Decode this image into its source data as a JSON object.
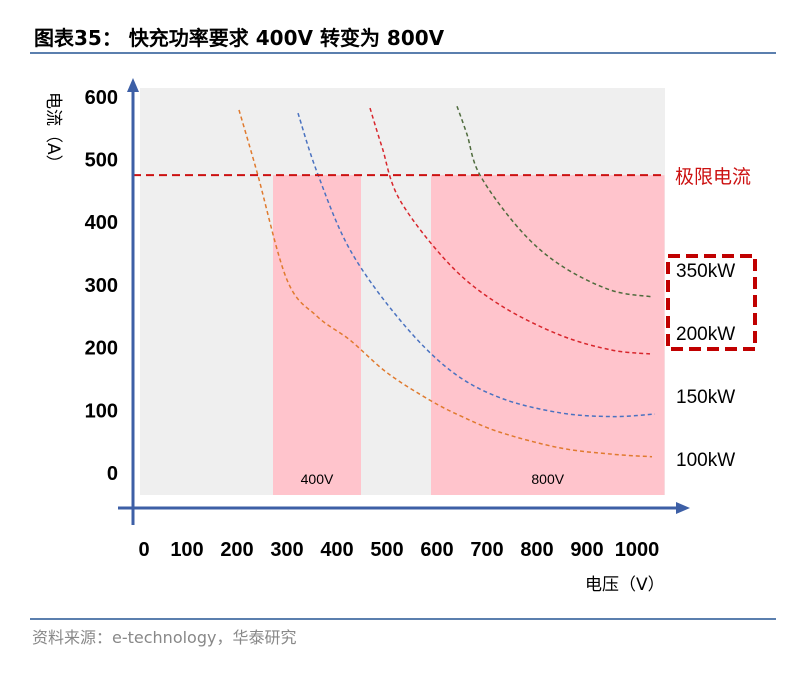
{
  "header": {
    "title": "图表35：  快充功率要求 400V 转变为 800V"
  },
  "footer": {
    "source": "资料来源：e-technology，华泰研究"
  },
  "colors": {
    "rule": "#5b7fae",
    "axis": "#3d5fa6",
    "plot_bg": "#efefef",
    "zone": "#ffc4cc",
    "limit": "#cc1111"
  },
  "chart_data": {
    "type": "line",
    "title": "快充功率要求 400V 转变为 800V",
    "xlabel": "电压（V）",
    "ylabel": "电流（A）",
    "xlim": [
      0,
      1050
    ],
    "ylim": [
      0,
      600
    ],
    "x_ticks": [
      "0",
      "100",
      "200",
      "300",
      "400",
      "500",
      "600",
      "700",
      "800",
      "900",
      "1000"
    ],
    "y_ticks": [
      "0",
      "100",
      "200",
      "300",
      "400",
      "500",
      "600"
    ],
    "limit_current": {
      "value": 475,
      "label": "极限电流"
    },
    "zones": [
      {
        "label": "400V",
        "from": 272,
        "to": 448
      },
      {
        "label": "800V",
        "from": 588,
        "to": 1055
      }
    ],
    "series": [
      {
        "name": "100kW",
        "color": "#e07a2e",
        "points": [
          [
            204,
            579
          ],
          [
            240,
            480
          ],
          [
            300,
            308
          ],
          [
            360,
            250
          ],
          [
            426,
            212
          ],
          [
            500,
            160
          ],
          [
            586,
            116
          ],
          [
            650,
            90
          ],
          [
            726,
            65
          ],
          [
            846,
            40
          ],
          [
            950,
            30
          ],
          [
            1030,
            26
          ]
        ]
      },
      {
        "name": "150kW",
        "color": "#4a72c0",
        "points": [
          [
            322,
            574
          ],
          [
            360,
            480
          ],
          [
            426,
            356
          ],
          [
            526,
            244
          ],
          [
            626,
            164
          ],
          [
            726,
            120
          ],
          [
            846,
            96
          ],
          [
            950,
            90
          ],
          [
            1036,
            94
          ]
        ]
      },
      {
        "name": "200kW",
        "color": "#d8262c",
        "points": [
          [
            466,
            582
          ],
          [
            490,
            520
          ],
          [
            526,
            435
          ],
          [
            626,
            332
          ],
          [
            726,
            268
          ],
          [
            846,
            220
          ],
          [
            950,
            196
          ],
          [
            1026,
            190
          ]
        ]
      },
      {
        "name": "350kW",
        "color": "#4f6b3d",
        "points": [
          [
            640,
            585
          ],
          [
            660,
            540
          ],
          [
            686,
            475
          ],
          [
            766,
            388
          ],
          [
            846,
            332
          ],
          [
            946,
            292
          ],
          [
            1030,
            281
          ]
        ]
      }
    ],
    "power_labels": [
      "350kW",
      "200kW",
      "150kW",
      "100kW"
    ]
  }
}
